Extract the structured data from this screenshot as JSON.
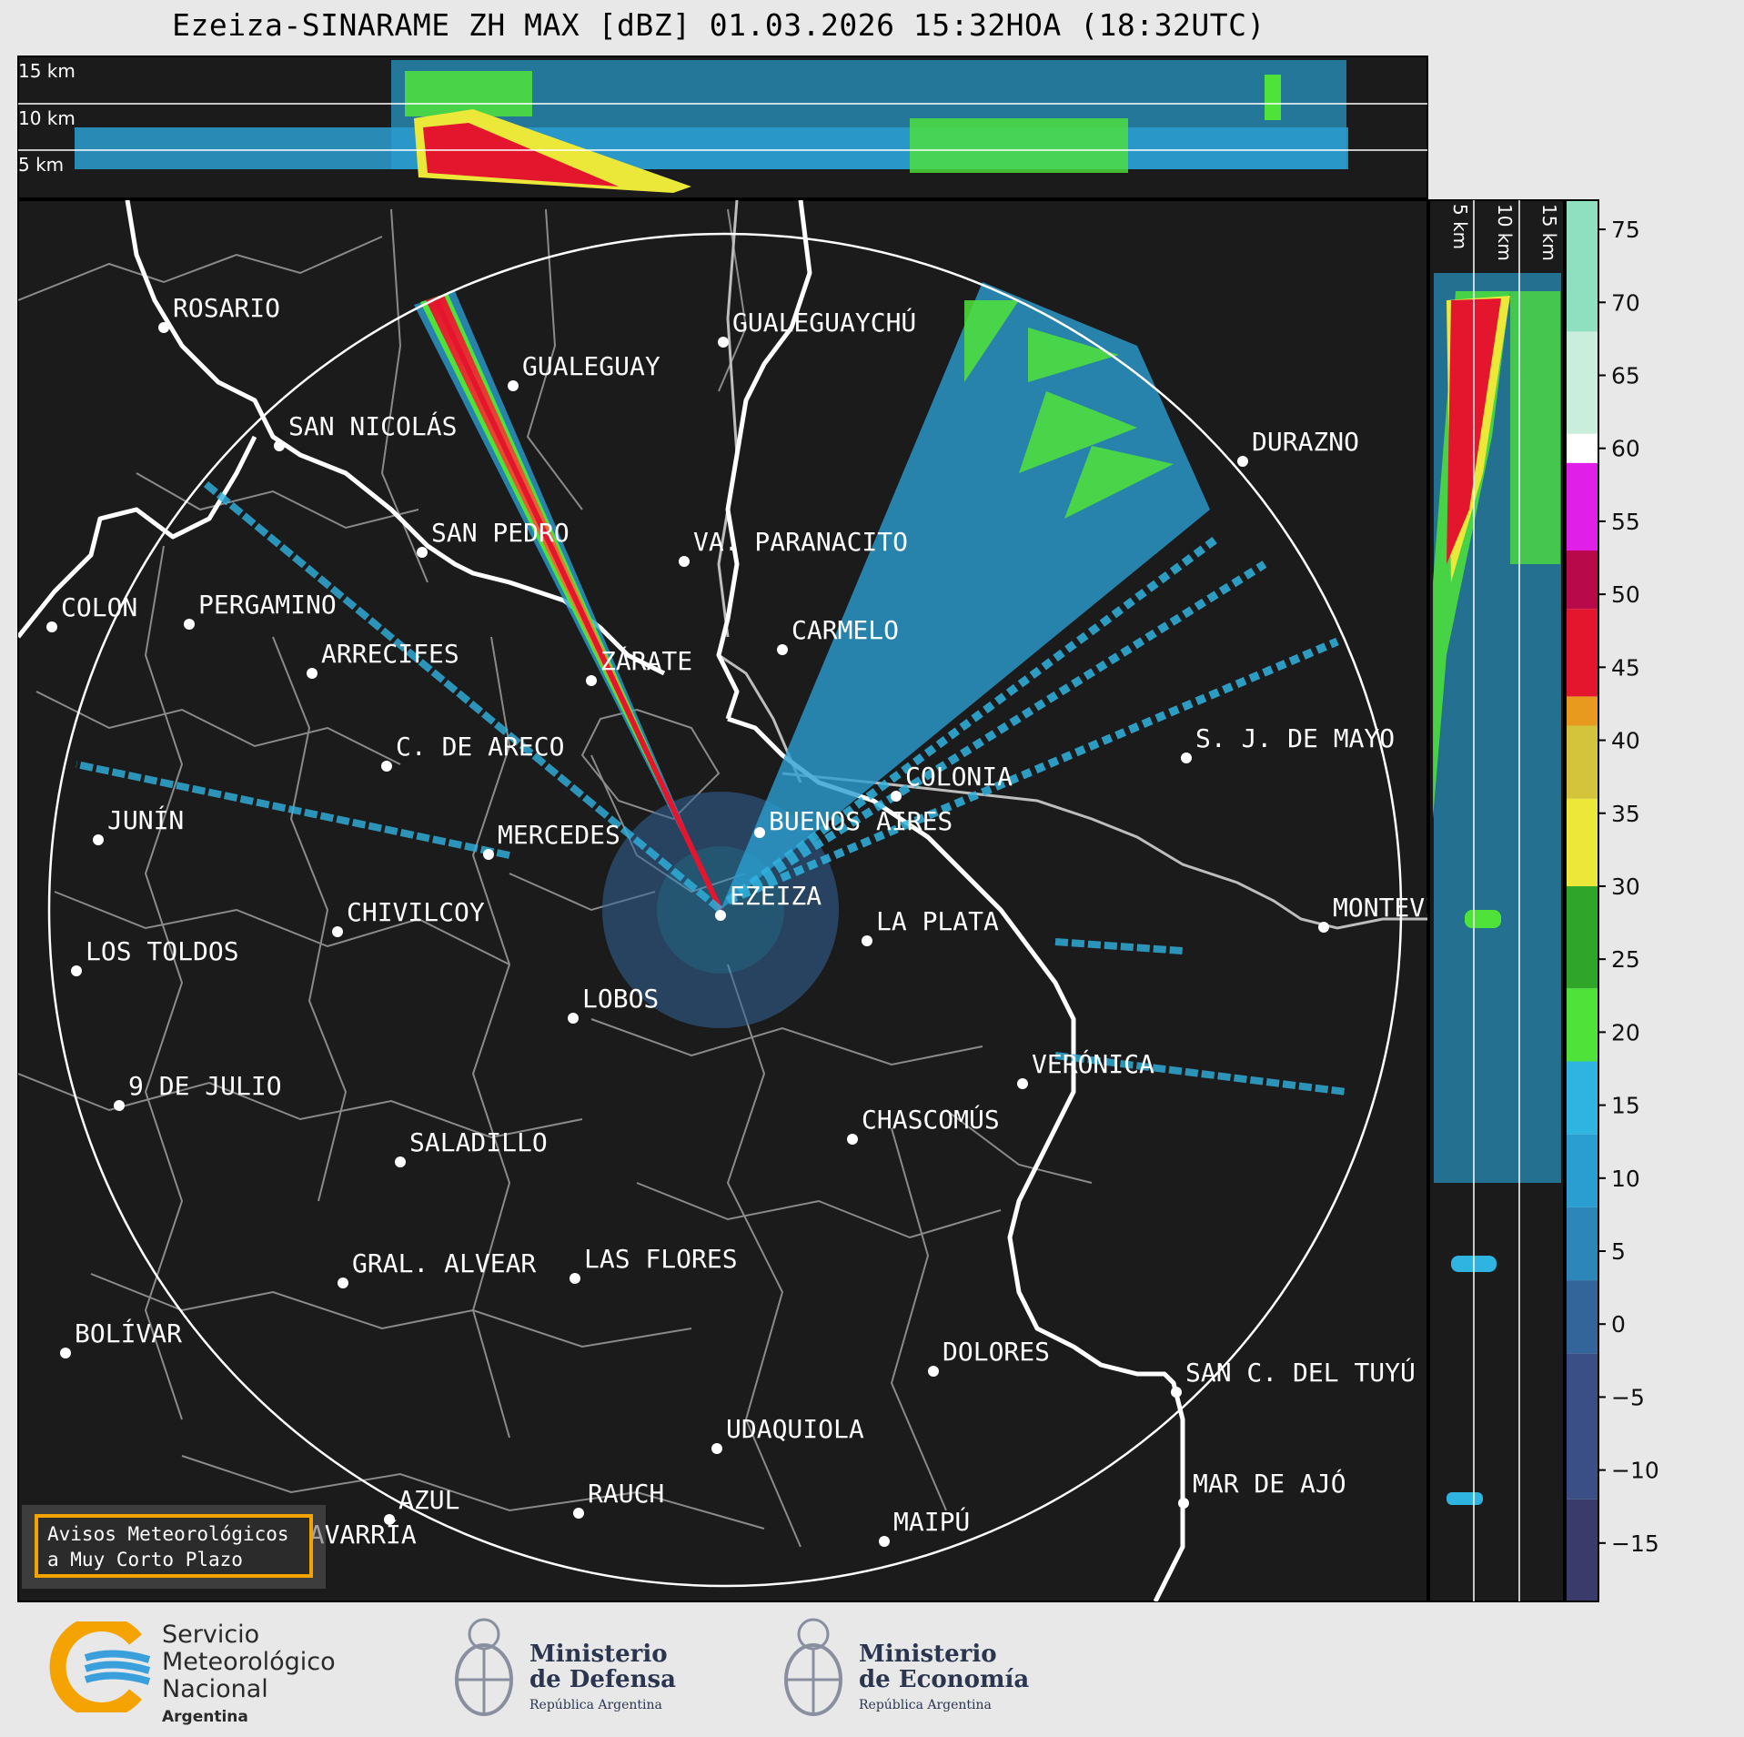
{
  "title": "Ezeiza-SINARAME ZH MAX [dBZ] 01.03.2026 15:32HOA (18:32UTC)",
  "top_profile": {
    "altitude_labels": [
      "15 km",
      "10 km",
      "5 km"
    ]
  },
  "side_profile": {
    "altitude_labels": [
      "5 km",
      "10 km",
      "15 km"
    ]
  },
  "colorbar": {
    "unit": "dBZ",
    "ticks": [
      "75",
      "70",
      "65",
      "60",
      "55",
      "50",
      "45",
      "40",
      "35",
      "30",
      "25",
      "20",
      "15",
      "10",
      "5",
      "0",
      "−5",
      "−10",
      "−15"
    ],
    "colors": {
      "minus15": "#3b3b6b",
      "minus5": "#3a4f85",
      "zero": "#33659a",
      "five": "#2c86b8",
      "ten": "#2a9ed0",
      "fifteen": "#2fb3e0",
      "twenty": "#4fe33a",
      "twentyfive": "#2fa52a",
      "thirty": "#ebe83a",
      "thirtyfive": "#d4c43c",
      "forty": "#e89a1f",
      "fortyfive": "#e4162e",
      "fifty": "#b80a4a",
      "fiftyfive": "#e01fe8",
      "sixty": "#ffffff",
      "sixtyfive": "#c9eedc",
      "seventy": "#8fe0c0"
    }
  },
  "cities": [
    {
      "name": "ROSARIO"
    },
    {
      "name": "GUALEGUAYCHÚ"
    },
    {
      "name": "GUALEGUAY"
    },
    {
      "name": "SAN NICOLÁS"
    },
    {
      "name": "DURAZNO"
    },
    {
      "name": "SAN PEDRO"
    },
    {
      "name": "VA. PARANACITO"
    },
    {
      "name": "COLON"
    },
    {
      "name": "PERGAMINO"
    },
    {
      "name": "CARMELO"
    },
    {
      "name": "ARRECIFES"
    },
    {
      "name": "ZÁRATE"
    },
    {
      "name": "S. J. DE MAYO"
    },
    {
      "name": "C. DE ARECO"
    },
    {
      "name": "COLONIA"
    },
    {
      "name": "JUNÍN"
    },
    {
      "name": "BUENOS AIRES"
    },
    {
      "name": "MERCEDES"
    },
    {
      "name": "EZEIZA"
    },
    {
      "name": "MONTEVIDEO"
    },
    {
      "name": "CHIVILCOY"
    },
    {
      "name": "LA PLATA"
    },
    {
      "name": "LOS TOLDOS"
    },
    {
      "name": "LOBOS"
    },
    {
      "name": "VERÓNICA"
    },
    {
      "name": "9 DE JULIO"
    },
    {
      "name": "CHASCOMÚS"
    },
    {
      "name": "SALADILLO"
    },
    {
      "name": "GRAL. ALVEAR"
    },
    {
      "name": "LAS FLORES"
    },
    {
      "name": "BOLÍVAR"
    },
    {
      "name": "DOLORES"
    },
    {
      "name": "SAN C. DEL TUYÚ"
    },
    {
      "name": "UDAQUIOLA"
    },
    {
      "name": "MAR DE AJÓ"
    },
    {
      "name": "AZUL"
    },
    {
      "name": "RAUCH"
    },
    {
      "name": "MAIPÚ"
    },
    {
      "name": "OLAVARRÍA"
    }
  ],
  "avisos": {
    "line1": "Avisos Meteorológicos",
    "line2": "a Muy Corto Plazo"
  },
  "logos": {
    "smn": {
      "line1": "Servicio",
      "line2": "Meteorológico",
      "line3": "Nacional",
      "line4": "Argentina"
    },
    "defensa": {
      "line1": "Ministerio",
      "line2": "de Defensa",
      "line3": "República Argentina"
    },
    "economia": {
      "line1": "Ministerio",
      "line2": "de Economía",
      "line3": "República Argentina"
    }
  }
}
